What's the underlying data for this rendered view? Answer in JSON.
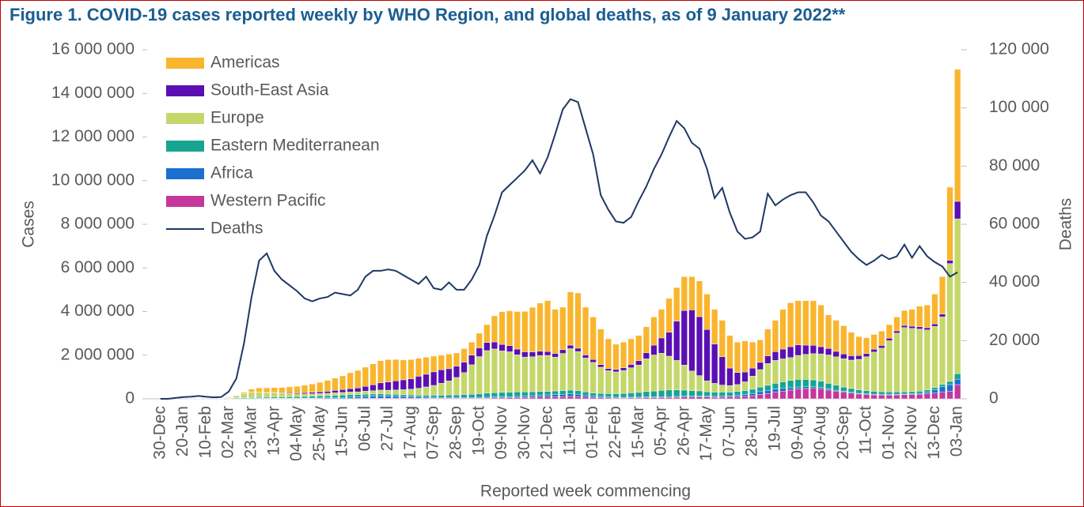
{
  "chart_data": {
    "type": "bar",
    "stacked": true,
    "title": "Figure 1. COVID-19 cases reported weekly by WHO Region, and global deaths, as of 9 January 2022**",
    "xlabel": "Reported week commencing",
    "ylabel": "Cases",
    "y2label": "Deaths",
    "categories": [
      "30-Dec",
      null,
      null,
      "20-Jan",
      null,
      null,
      "10-Feb",
      null,
      null,
      "02-Mar",
      null,
      null,
      "23-Mar",
      null,
      null,
      "13-Apr",
      null,
      null,
      "04-May",
      null,
      null,
      "25-May",
      null,
      null,
      "15-Jun",
      null,
      null,
      "06-Jul",
      null,
      null,
      "27-Jul",
      null,
      null,
      "17-Aug",
      null,
      null,
      "07-Sep",
      null,
      null,
      "28-Sep",
      null,
      null,
      "19-Oct",
      null,
      null,
      "09-Nov",
      null,
      null,
      "30-Nov",
      null,
      null,
      "21-Dec",
      null,
      null,
      "11-Jan",
      null,
      null,
      "01-Feb",
      null,
      null,
      "22-Feb",
      null,
      null,
      "15-Mar",
      null,
      null,
      "05-Apr",
      null,
      null,
      "26-Apr",
      null,
      null,
      "17-May",
      null,
      null,
      "07-Jun",
      null,
      null,
      "28-Jun",
      null,
      null,
      "19-Jul",
      null,
      null,
      "09-Aug",
      null,
      null,
      "30-Aug",
      null,
      null,
      "20-Sep",
      null,
      null,
      "11-Oct",
      null,
      null,
      "01-Nov",
      null,
      null,
      "22-Nov",
      null,
      null,
      "13-Dec",
      null,
      null,
      "03-Jan"
    ],
    "ylim": [
      0,
      16000000
    ],
    "yticks": [
      0,
      {
        "value": 2000000,
        "label": "2 000 000"
      },
      {
        "value": 4000000,
        "label": "4 000 000"
      },
      {
        "value": 6000000,
        "label": "6 000 000"
      },
      {
        "value": 8000000,
        "label": "8 000 000"
      },
      {
        "value": 10000000,
        "label": "10 000 000"
      },
      {
        "value": 12000000,
        "label": "12 000 000"
      },
      {
        "value": 14000000,
        "label": "14 000 000"
      },
      {
        "value": 16000000,
        "label": "16 000 000"
      }
    ],
    "y2lim": [
      0,
      120000
    ],
    "y2ticks": [
      0,
      {
        "value": 20000,
        "label": "20 000"
      },
      {
        "value": 40000,
        "label": "40 000"
      },
      {
        "value": 60000,
        "label": "60 000"
      },
      {
        "value": 80000,
        "label": "80 000"
      },
      {
        "value": 100000,
        "label": "100 000"
      },
      {
        "value": 120000,
        "label": "120 000"
      }
    ],
    "grid": false,
    "legend": "top-left",
    "series": [
      {
        "name": "Americas",
        "color": "#f9b52e",
        "values": [
          0,
          0,
          0,
          0,
          0,
          0,
          0,
          0,
          0,
          10000,
          10000,
          50000,
          140000,
          190000,
          210000,
          220000,
          240000,
          270000,
          300000,
          340000,
          380000,
          430000,
          500000,
          560000,
          630000,
          730000,
          800000,
          880000,
          960000,
          1020000,
          1020000,
          980000,
          910000,
          880000,
          820000,
          780000,
          720000,
          670000,
          670000,
          600000,
          620000,
          600000,
          670000,
          820000,
          1200000,
          1500000,
          1600000,
          1720000,
          1850000,
          2050000,
          2200000,
          2330000,
          2020000,
          1950000,
          2440000,
          2530000,
          2190000,
          1950000,
          1630000,
          1360000,
          1155000,
          1180000,
          1175000,
          1155000,
          1185000,
          1290000,
          1310000,
          1545000,
          1540000,
          1550000,
          1525000,
          1635000,
          1625000,
          1590000,
          1670000,
          1490000,
          1395000,
          1420000,
          1190000,
          1030000,
          1230000,
          1440000,
          1820000,
          2010000,
          2030000,
          2040000,
          2050000,
          1910000,
          1540000,
          1425000,
          1290000,
          1075000,
          870000,
          725000,
          675000,
          655000,
          625000,
          635000,
          685000,
          770000,
          950000,
          1040000,
          1370000,
          1720000,
          3350000,
          6050000
        ]
      },
      {
        "name": "South-East Asia",
        "color": "#5b0fb3",
        "values": [
          0,
          0,
          0,
          0,
          0,
          0,
          0,
          0,
          0,
          0,
          0,
          2000,
          5000,
          10000,
          15000,
          20000,
          25000,
          35000,
          45000,
          55000,
          65000,
          80000,
          90000,
          110000,
          130000,
          150000,
          180000,
          220000,
          270000,
          330000,
          380000,
          420000,
          450000,
          480000,
          550000,
          580000,
          620000,
          620000,
          560000,
          520000,
          480000,
          440000,
          400000,
          370000,
          320000,
          300000,
          280000,
          260000,
          240000,
          220000,
          200000,
          180000,
          170000,
          170000,
          160000,
          150000,
          140000,
          130000,
          120000,
          100000,
          110000,
          120000,
          150000,
          200000,
          280000,
          450000,
          700000,
          1100000,
          1800000,
          2500000,
          2800000,
          2700000,
          2350000,
          1800000,
          1300000,
          800000,
          550000,
          450000,
          370000,
          330000,
          350000,
          400000,
          450000,
          500000,
          480000,
          420000,
          380000,
          330000,
          300000,
          250000,
          220000,
          200000,
          170000,
          150000,
          130000,
          120000,
          110000,
          100000,
          100000,
          100000,
          100000,
          100000,
          110000,
          120000,
          150000,
          800000
        ]
      },
      {
        "name": "Europe",
        "color": "#c4d76a",
        "values": [
          0,
          0,
          0,
          0,
          0,
          0,
          0,
          0,
          5000,
          40000,
          100000,
          200000,
          250000,
          230000,
          200000,
          190000,
          170000,
          150000,
          130000,
          120000,
          110000,
          110000,
          110000,
          115000,
          120000,
          125000,
          130000,
          140000,
          150000,
          170000,
          180000,
          200000,
          230000,
          270000,
          320000,
          380000,
          450000,
          550000,
          650000,
          800000,
          1000000,
          1350000,
          1700000,
          1950000,
          2000000,
          1900000,
          1850000,
          1700000,
          1600000,
          1600000,
          1650000,
          1650000,
          1550000,
          1700000,
          1900000,
          1800000,
          1550000,
          1400000,
          1200000,
          1050000,
          1000000,
          1050000,
          1150000,
          1250000,
          1500000,
          1650000,
          1700000,
          1550000,
          1350000,
          1150000,
          900000,
          700000,
          500000,
          400000,
          320000,
          300000,
          320000,
          400000,
          600000,
          800000,
          1000000,
          1050000,
          1050000,
          1050000,
          1100000,
          1150000,
          1200000,
          1250000,
          1300000,
          1300000,
          1300000,
          1300000,
          1400000,
          1550000,
          1800000,
          2000000,
          2350000,
          2700000,
          2950000,
          2900000,
          2850000,
          2750000,
          2800000,
          3100000,
          5400000,
          7100000
        ]
      },
      {
        "name": "Eastern Mediterranean",
        "color": "#17a592",
        "values": [
          0,
          0,
          0,
          0,
          0,
          0,
          0,
          0,
          5000,
          20000,
          30000,
          40000,
          40000,
          50000,
          55000,
          60000,
          65000,
          70000,
          75000,
          80000,
          90000,
          95000,
          100000,
          110000,
          110000,
          110000,
          100000,
          100000,
          95000,
          90000,
          85000,
          80000,
          80000,
          80000,
          85000,
          90000,
          95000,
          100000,
          110000,
          120000,
          140000,
          150000,
          170000,
          190000,
          200000,
          210000,
          210000,
          210000,
          190000,
          180000,
          170000,
          160000,
          160000,
          170000,
          170000,
          160000,
          150000,
          140000,
          140000,
          150000,
          160000,
          180000,
          200000,
          220000,
          250000,
          270000,
          290000,
          300000,
          300000,
          280000,
          260000,
          240000,
          210000,
          200000,
          190000,
          170000,
          170000,
          180000,
          190000,
          210000,
          230000,
          260000,
          300000,
          330000,
          350000,
          340000,
          320000,
          290000,
          260000,
          230000,
          200000,
          180000,
          160000,
          150000,
          140000,
          130000,
          120000,
          110000,
          100000,
          100000,
          100000,
          100000,
          100000,
          110000,
          150000,
          250000
        ]
      },
      {
        "name": "Africa",
        "color": "#1b6fd1",
        "values": [
          0,
          0,
          0,
          0,
          0,
          0,
          0,
          0,
          0,
          0,
          0,
          1000,
          3000,
          5000,
          7000,
          8000,
          10000,
          12000,
          15000,
          20000,
          25000,
          30000,
          35000,
          40000,
          50000,
          65000,
          75000,
          90000,
          100000,
          110000,
          100000,
          90000,
          80000,
          65000,
          55000,
          50000,
          45000,
          40000,
          35000,
          35000,
          35000,
          35000,
          35000,
          40000,
          45000,
          45000,
          50000,
          60000,
          65000,
          75000,
          85000,
          95000,
          110000,
          110000,
          120000,
          110000,
          90000,
          70000,
          60000,
          50000,
          40000,
          35000,
          35000,
          35000,
          40000,
          40000,
          40000,
          40000,
          40000,
          40000,
          35000,
          35000,
          35000,
          40000,
          50000,
          60000,
          75000,
          90000,
          110000,
          130000,
          150000,
          150000,
          130000,
          110000,
          90000,
          80000,
          70000,
          60000,
          50000,
          45000,
          40000,
          35000,
          30000,
          25000,
          25000,
          25000,
          25000,
          25000,
          25000,
          30000,
          40000,
          80000,
          160000,
          250000,
          300000,
          250000
        ]
      },
      {
        "name": "Western Pacific",
        "color": "#c5379b",
        "values": [
          0,
          0,
          10000,
          20000,
          15000,
          10000,
          5000,
          5000,
          5000,
          10000,
          10000,
          10000,
          10000,
          15000,
          15000,
          15000,
          12000,
          10000,
          8000,
          8000,
          8000,
          8000,
          10000,
          10000,
          12000,
          15000,
          15000,
          20000,
          25000,
          30000,
          30000,
          35000,
          30000,
          25000,
          25000,
          25000,
          25000,
          25000,
          25000,
          25000,
          25000,
          25000,
          30000,
          30000,
          40000,
          40000,
          45000,
          50000,
          60000,
          70000,
          80000,
          85000,
          90000,
          100000,
          110000,
          100000,
          80000,
          60000,
          50000,
          40000,
          35000,
          35000,
          40000,
          40000,
          45000,
          50000,
          60000,
          65000,
          70000,
          80000,
          80000,
          90000,
          80000,
          70000,
          70000,
          80000,
          90000,
          110000,
          140000,
          200000,
          240000,
          300000,
          350000,
          400000,
          450000,
          470000,
          480000,
          460000,
          400000,
          350000,
          300000,
          260000,
          220000,
          200000,
          180000,
          170000,
          170000,
          180000,
          190000,
          200000,
          210000,
          230000,
          260000,
          300000,
          350000,
          650000
        ]
      },
      {
        "name": "Deaths",
        "color": "#1f3864",
        "type": "line",
        "axis": "y2",
        "values": [
          0,
          0,
          300,
          600,
          700,
          1000,
          700,
          500,
          600,
          2500,
          7000,
          19000,
          35000,
          47500,
          50000,
          44000,
          41000,
          39000,
          37000,
          34500,
          33500,
          34500,
          35000,
          36500,
          36000,
          35500,
          37500,
          42000,
          44000,
          44000,
          44500,
          44000,
          42500,
          41000,
          39500,
          42000,
          38000,
          37500,
          40000,
          37500,
          37500,
          41000,
          46000,
          56000,
          63000,
          71000,
          73500,
          76000,
          78500,
          82000,
          77500,
          83000,
          91000,
          99500,
          103000,
          102000,
          93000,
          84000,
          70000,
          65000,
          61000,
          60500,
          62500,
          68000,
          73000,
          79000,
          84000,
          90000,
          95500,
          93000,
          88000,
          86000,
          79000,
          69000,
          72500,
          64000,
          57500,
          55000,
          55500,
          57500,
          70500,
          66500,
          68500,
          70000,
          71000,
          71000,
          67500,
          63000,
          61000,
          57500,
          54000,
          50500,
          48000,
          46000,
          47500,
          49500,
          48000,
          49000,
          53000,
          48500,
          52500,
          49000,
          47000,
          45500,
          42000,
          43500
        ]
      }
    ]
  }
}
